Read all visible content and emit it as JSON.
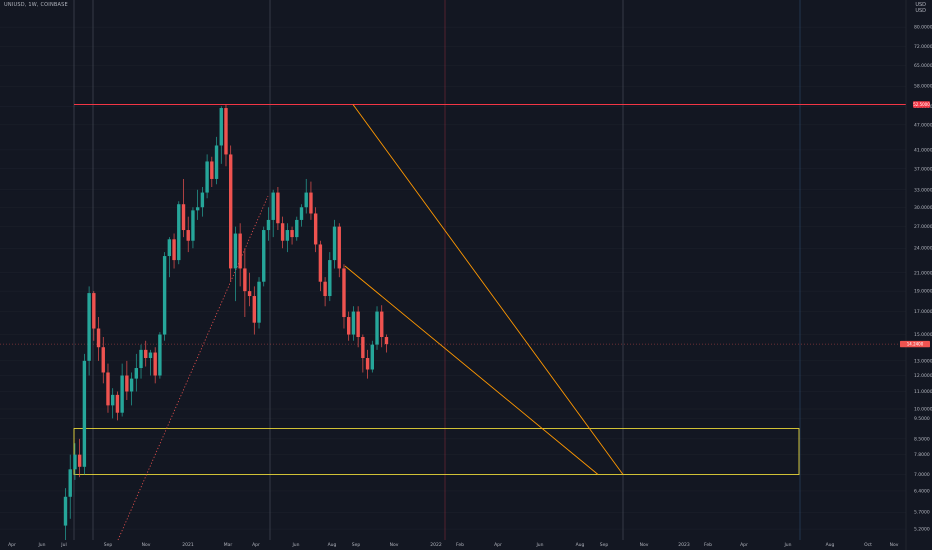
{
  "header": {
    "symbol": "UNIUSD, 1W, COINBASE"
  },
  "corner": {
    "label_top": "USD",
    "label_bottom": "USD"
  },
  "colors": {
    "background": "#131722",
    "up": "#26a69a",
    "down": "#ef5350",
    "resistance": "#f23645",
    "trend": "#ff9800",
    "support": "#ffeb3b",
    "price_tag": "#ef5350",
    "grid": "#1e222d"
  },
  "chart_data": {
    "type": "candlestick",
    "price_levels": {
      "resistance": 52.5,
      "current": 14.24
    },
    "yticks": [
      80,
      72,
      65,
      58,
      52,
      47,
      41,
      37,
      33,
      30,
      27,
      24,
      21,
      19,
      17,
      15,
      13,
      12,
      11,
      10,
      9.5,
      8.5,
      7.8,
      7.0,
      6.4,
      5.7,
      5.2
    ],
    "x_labels": [
      "Apr",
      "Jun",
      "Jul",
      "Sep",
      "Nov",
      "2021",
      "Mar",
      "Apr",
      "Jun",
      "Aug",
      "Sep",
      "Nov",
      "2022",
      "Feb",
      "Apr",
      "Jun",
      "Aug",
      "Sep",
      "Nov",
      "2023",
      "Feb",
      "Apr",
      "Jun",
      "Aug",
      "Oct",
      "Nov"
    ],
    "candles": [
      {
        "o": 5.3,
        "h": 6.5,
        "l": 4.8,
        "c": 6.2
      },
      {
        "o": 6.2,
        "h": 7.8,
        "l": 5.5,
        "c": 7.2
      },
      {
        "o": 7.2,
        "h": 8.3,
        "l": 6.8,
        "c": 7.8
      },
      {
        "o": 7.8,
        "h": 8.5,
        "l": 6.9,
        "c": 7.3
      },
      {
        "o": 7.3,
        "h": 13.5,
        "l": 7.0,
        "c": 13.0
      },
      {
        "o": 13.0,
        "h": 19.5,
        "l": 12.0,
        "c": 18.8
      },
      {
        "o": 18.8,
        "h": 19.0,
        "l": 14.5,
        "c": 15.5
      },
      {
        "o": 15.5,
        "h": 16.5,
        "l": 13.0,
        "c": 14.0
      },
      {
        "o": 14.0,
        "h": 14.8,
        "l": 11.5,
        "c": 12.2
      },
      {
        "o": 12.2,
        "h": 12.8,
        "l": 9.8,
        "c": 10.2
      },
      {
        "o": 10.2,
        "h": 11.2,
        "l": 9.5,
        "c": 10.8
      },
      {
        "o": 10.8,
        "h": 11.0,
        "l": 9.4,
        "c": 9.8
      },
      {
        "o": 9.8,
        "h": 12.8,
        "l": 9.6,
        "c": 12.0
      },
      {
        "o": 12.0,
        "h": 13.0,
        "l": 10.5,
        "c": 11.0
      },
      {
        "o": 11.0,
        "h": 12.2,
        "l": 10.2,
        "c": 11.8
      },
      {
        "o": 11.8,
        "h": 13.5,
        "l": 11.0,
        "c": 12.5
      },
      {
        "o": 12.5,
        "h": 14.2,
        "l": 11.8,
        "c": 13.8
      },
      {
        "o": 13.8,
        "h": 14.5,
        "l": 12.6,
        "c": 13.2
      },
      {
        "o": 13.2,
        "h": 13.8,
        "l": 12.0,
        "c": 13.6
      },
      {
        "o": 13.6,
        "h": 14.0,
        "l": 11.5,
        "c": 12.0
      },
      {
        "o": 12.0,
        "h": 15.2,
        "l": 11.8,
        "c": 15.0
      },
      {
        "o": 15.0,
        "h": 23.5,
        "l": 14.5,
        "c": 23.0
      },
      {
        "o": 23.0,
        "h": 25.5,
        "l": 20.5,
        "c": 25.2
      },
      {
        "o": 25.2,
        "h": 26.0,
        "l": 21.5,
        "c": 22.5
      },
      {
        "o": 22.5,
        "h": 31.0,
        "l": 22.0,
        "c": 30.5
      },
      {
        "o": 30.5,
        "h": 35.0,
        "l": 25.5,
        "c": 26.5
      },
      {
        "o": 26.5,
        "h": 28.5,
        "l": 23.5,
        "c": 25.0
      },
      {
        "o": 25.0,
        "h": 30.0,
        "l": 24.0,
        "c": 29.5
      },
      {
        "o": 29.5,
        "h": 33.0,
        "l": 28.0,
        "c": 30.0
      },
      {
        "o": 30.0,
        "h": 33.5,
        "l": 28.5,
        "c": 32.5
      },
      {
        "o": 32.5,
        "h": 40.0,
        "l": 31.5,
        "c": 38.5
      },
      {
        "o": 38.5,
        "h": 39.5,
        "l": 33.5,
        "c": 35.0
      },
      {
        "o": 35.0,
        "h": 44.0,
        "l": 34.0,
        "c": 42.0
      },
      {
        "o": 42.0,
        "h": 52.0,
        "l": 38.0,
        "c": 51.5
      },
      {
        "o": 51.5,
        "h": 52.5,
        "l": 37.5,
        "c": 40.0
      },
      {
        "o": 40.0,
        "h": 42.0,
        "l": 20.0,
        "c": 21.5
      },
      {
        "o": 21.5,
        "h": 27.0,
        "l": 18.0,
        "c": 26.0
      },
      {
        "o": 26.0,
        "h": 27.5,
        "l": 19.5,
        "c": 21.5
      },
      {
        "o": 21.5,
        "h": 24.0,
        "l": 16.5,
        "c": 19.0
      },
      {
        "o": 19.0,
        "h": 21.0,
        "l": 17.5,
        "c": 18.5
      },
      {
        "o": 18.5,
        "h": 19.5,
        "l": 15.0,
        "c": 16.0
      },
      {
        "o": 16.0,
        "h": 20.5,
        "l": 15.5,
        "c": 20.0
      },
      {
        "o": 20.0,
        "h": 27.0,
        "l": 19.5,
        "c": 26.5
      },
      {
        "o": 26.5,
        "h": 30.0,
        "l": 25.0,
        "c": 28.0
      },
      {
        "o": 28.0,
        "h": 33.0,
        "l": 25.5,
        "c": 32.5
      },
      {
        "o": 32.5,
        "h": 33.5,
        "l": 26.5,
        "c": 27.5
      },
      {
        "o": 27.5,
        "h": 28.5,
        "l": 24.0,
        "c": 25.0
      },
      {
        "o": 25.0,
        "h": 27.5,
        "l": 23.5,
        "c": 26.5
      },
      {
        "o": 26.5,
        "h": 27.0,
        "l": 24.5,
        "c": 25.5
      },
      {
        "o": 25.5,
        "h": 28.5,
        "l": 25.0,
        "c": 28.0
      },
      {
        "o": 28.0,
        "h": 30.5,
        "l": 27.0,
        "c": 30.0
      },
      {
        "o": 30.0,
        "h": 35.0,
        "l": 29.0,
        "c": 32.5
      },
      {
        "o": 32.5,
        "h": 34.5,
        "l": 28.0,
        "c": 29.0
      },
      {
        "o": 29.0,
        "h": 30.0,
        "l": 23.5,
        "c": 24.5
      },
      {
        "o": 24.5,
        "h": 25.0,
        "l": 19.0,
        "c": 20.0
      },
      {
        "o": 20.0,
        "h": 20.5,
        "l": 17.5,
        "c": 18.5
      },
      {
        "o": 18.5,
        "h": 23.5,
        "l": 18.0,
        "c": 22.5
      },
      {
        "o": 22.5,
        "h": 28.0,
        "l": 21.5,
        "c": 27.0
      },
      {
        "o": 27.0,
        "h": 27.5,
        "l": 20.5,
        "c": 21.5
      },
      {
        "o": 21.5,
        "h": 22.0,
        "l": 15.5,
        "c": 16.5
      },
      {
        "o": 16.5,
        "h": 17.0,
        "l": 14.5,
        "c": 15.0
      },
      {
        "o": 15.0,
        "h": 17.5,
        "l": 14.5,
        "c": 17.0
      },
      {
        "o": 17.0,
        "h": 17.5,
        "l": 14.0,
        "c": 14.8
      },
      {
        "o": 14.8,
        "h": 15.0,
        "l": 12.2,
        "c": 13.2
      },
      {
        "o": 13.2,
        "h": 13.8,
        "l": 11.8,
        "c": 12.4
      },
      {
        "o": 12.4,
        "h": 14.5,
        "l": 12.2,
        "c": 14.2
      },
      {
        "o": 14.2,
        "h": 17.5,
        "l": 13.8,
        "c": 17.0
      },
      {
        "o": 17.0,
        "h": 17.6,
        "l": 14.0,
        "c": 14.8
      },
      {
        "o": 14.8,
        "h": 15.0,
        "l": 13.6,
        "c": 14.24
      }
    ]
  }
}
